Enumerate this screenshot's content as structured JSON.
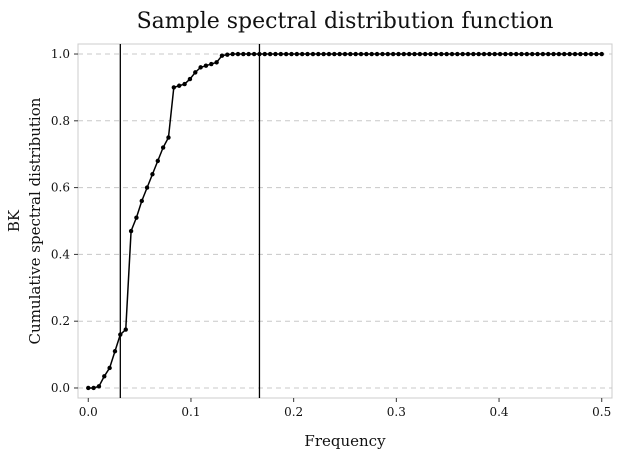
{
  "chart_data": {
    "type": "line",
    "title": "Sample spectral distribution function",
    "xlabel": "Frequency",
    "ylabel_top": "BK",
    "ylabel": "Cumulative spectral distribution",
    "xlim": [
      -0.01,
      0.51
    ],
    "ylim": [
      -0.03,
      1.03
    ],
    "xticks": [
      0.0,
      0.1,
      0.2,
      0.3,
      0.4,
      0.5
    ],
    "xtick_labels": [
      "0.0",
      "0.1",
      "0.2",
      "0.3",
      "0.4",
      "0.5"
    ],
    "yticks": [
      0.0,
      0.2,
      0.4,
      0.6,
      0.8,
      1.0
    ],
    "ytick_labels": [
      "0.0",
      "0.2",
      "0.4",
      "0.6",
      "0.8",
      "1.0"
    ],
    "grid": "horizontal dashed",
    "vlines": [
      0.0312,
      0.1667
    ],
    "series": [
      {
        "color": "#000000",
        "x": [
          0.0,
          0.0052,
          0.0104,
          0.0156,
          0.0208,
          0.026,
          0.0312,
          0.0365,
          0.0417,
          0.0469,
          0.0521,
          0.0573,
          0.0625,
          0.0677,
          0.0729,
          0.0781,
          0.0833,
          0.0885,
          0.0938,
          0.099,
          0.1042,
          0.1094,
          0.1146,
          0.1198,
          0.125,
          0.1302,
          0.1354,
          0.1406,
          0.1458,
          0.151,
          0.1562,
          0.1615,
          0.1667,
          0.1719,
          0.1771,
          0.1823,
          0.1875,
          0.1927,
          0.1979,
          0.2031,
          0.2083,
          0.2135,
          0.2188,
          0.224,
          0.2292,
          0.2344,
          0.2396,
          0.2448,
          0.25,
          0.2552,
          0.2604,
          0.2656,
          0.2708,
          0.276,
          0.2812,
          0.2865,
          0.2917,
          0.2969,
          0.3021,
          0.3073,
          0.3125,
          0.3177,
          0.3229,
          0.3281,
          0.3333,
          0.3385,
          0.3438,
          0.349,
          0.3542,
          0.3594,
          0.3646,
          0.3698,
          0.375,
          0.3802,
          0.3854,
          0.3906,
          0.3958,
          0.401,
          0.4062,
          0.4115,
          0.4167,
          0.4219,
          0.4271,
          0.4323,
          0.4375,
          0.4427,
          0.4479,
          0.4531,
          0.4583,
          0.4635,
          0.4688,
          0.474,
          0.4792,
          0.4844,
          0.4896,
          0.4948,
          0.5
        ],
        "y": [
          0.0,
          0.0,
          0.005,
          0.035,
          0.06,
          0.11,
          0.16,
          0.175,
          0.47,
          0.51,
          0.56,
          0.6,
          0.64,
          0.68,
          0.72,
          0.75,
          0.9,
          0.905,
          0.91,
          0.925,
          0.945,
          0.96,
          0.965,
          0.97,
          0.975,
          0.995,
          0.998,
          1.0,
          1.0,
          1.0,
          1.0,
          1.0,
          1.0,
          1.0,
          1.0,
          1.0,
          1.0,
          1.0,
          1.0,
          1.0,
          1.0,
          1.0,
          1.0,
          1.0,
          1.0,
          1.0,
          1.0,
          1.0,
          1.0,
          1.0,
          1.0,
          1.0,
          1.0,
          1.0,
          1.0,
          1.0,
          1.0,
          1.0,
          1.0,
          1.0,
          1.0,
          1.0,
          1.0,
          1.0,
          1.0,
          1.0,
          1.0,
          1.0,
          1.0,
          1.0,
          1.0,
          1.0,
          1.0,
          1.0,
          1.0,
          1.0,
          1.0,
          1.0,
          1.0,
          1.0,
          1.0,
          1.0,
          1.0,
          1.0,
          1.0,
          1.0,
          1.0,
          1.0,
          1.0,
          1.0,
          1.0,
          1.0,
          1.0,
          1.0,
          1.0,
          1.0,
          1.0
        ]
      }
    ]
  }
}
